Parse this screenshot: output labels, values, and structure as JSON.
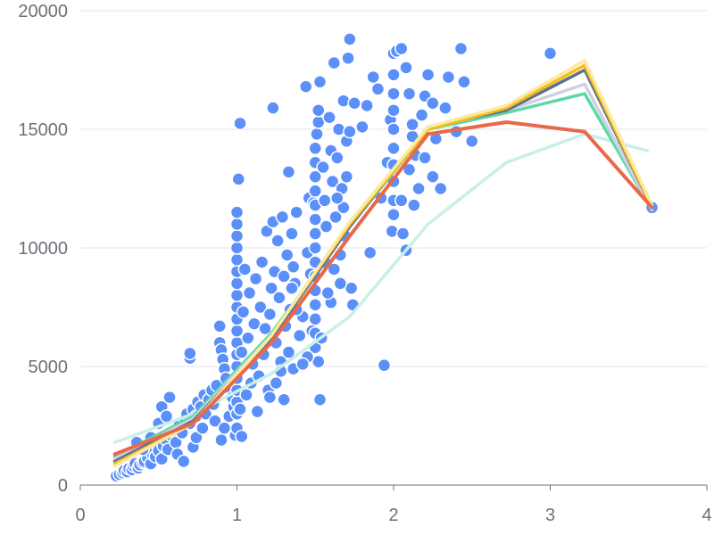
{
  "chart_data": {
    "type": "scatter",
    "title": "",
    "xlabel": "",
    "ylabel": "",
    "xlim": [
      0,
      4
    ],
    "ylim": [
      0,
      20000
    ],
    "x_ticks": [
      0,
      1,
      2,
      3,
      4
    ],
    "y_ticks": [
      0,
      5000,
      10000,
      15000,
      20000
    ],
    "x_tick_labels": [
      "0",
      "1",
      "2",
      "3",
      "4"
    ],
    "y_tick_labels": [
      "0",
      "5000",
      "10000",
      "15000",
      "20000"
    ],
    "grid": "horizontal",
    "legend": "none",
    "colors": {
      "points": "#5b8ff9",
      "point_stroke": "#ffffff",
      "grid": "#e0e6f1",
      "axis": "#6e7079",
      "lines": [
        "#c8f0e6",
        "#5ad8a6",
        "#d3cfe3",
        "#5d7092",
        "#f6bd16",
        "#fce9a4",
        "#e8684a"
      ]
    },
    "scatter_series": [
      {
        "points": [
          [
            0.23,
            380
          ],
          [
            0.25,
            450
          ],
          [
            0.27,
            520
          ],
          [
            0.28,
            610
          ],
          [
            0.3,
            560
          ],
          [
            0.31,
            700
          ],
          [
            0.33,
            650
          ],
          [
            0.34,
            800
          ],
          [
            0.35,
            900
          ],
          [
            0.37,
            720
          ],
          [
            0.38,
            850
          ],
          [
            0.4,
            950
          ],
          [
            0.41,
            1000
          ],
          [
            0.43,
            1150
          ],
          [
            0.45,
            900
          ],
          [
            0.46,
            1300
          ],
          [
            0.48,
            1200
          ],
          [
            0.5,
            1450
          ],
          [
            0.52,
            1100
          ],
          [
            0.53,
            1650
          ],
          [
            0.55,
            1900
          ],
          [
            0.56,
            1500
          ],
          [
            0.58,
            2100
          ],
          [
            0.6,
            2300
          ],
          [
            0.61,
            1800
          ],
          [
            0.63,
            2500
          ],
          [
            0.65,
            2200
          ],
          [
            0.67,
            2800
          ],
          [
            0.68,
            3000
          ],
          [
            0.7,
            2600
          ],
          [
            0.72,
            3200
          ],
          [
            0.74,
            2900
          ],
          [
            0.75,
            3500
          ],
          [
            0.77,
            3300
          ],
          [
            0.79,
            3800
          ],
          [
            0.8,
            3000
          ],
          [
            0.82,
            3600
          ],
          [
            0.84,
            4000
          ],
          [
            0.85,
            3400
          ],
          [
            0.87,
            4200
          ],
          [
            0.36,
            1800
          ],
          [
            0.4,
            1500
          ],
          [
            0.45,
            2000
          ],
          [
            0.5,
            2600
          ],
          [
            0.52,
            3300
          ],
          [
            0.55,
            2900
          ],
          [
            0.57,
            3700
          ],
          [
            0.62,
            1300
          ],
          [
            0.66,
            1000
          ],
          [
            0.7,
            5350
          ],
          [
            0.7,
            5550
          ],
          [
            0.72,
            1600
          ],
          [
            0.74,
            2000
          ],
          [
            0.78,
            2400
          ],
          [
            0.86,
            2700
          ],
          [
            0.9,
            1900
          ],
          [
            0.92,
            2400
          ],
          [
            0.95,
            2900
          ],
          [
            0.98,
            3300
          ],
          [
            0.89,
            6700
          ],
          [
            0.89,
            6000
          ],
          [
            0.9,
            5700
          ],
          [
            0.91,
            5300
          ],
          [
            0.92,
            4900
          ],
          [
            0.93,
            4500
          ],
          [
            0.95,
            4100
          ],
          [
            0.97,
            3700
          ],
          [
            0.99,
            2100
          ],
          [
            1.0,
            2400
          ],
          [
            1.0,
            3000
          ],
          [
            1.0,
            3500
          ],
          [
            1.0,
            4000
          ],
          [
            1.0,
            4500
          ],
          [
            1.0,
            5000
          ],
          [
            1.0,
            5500
          ],
          [
            1.0,
            6000
          ],
          [
            1.0,
            6500
          ],
          [
            1.0,
            7000
          ],
          [
            1.0,
            7500
          ],
          [
            1.0,
            8000
          ],
          [
            1.0,
            8500
          ],
          [
            1.0,
            9000
          ],
          [
            1.0,
            9500
          ],
          [
            1.0,
            10000
          ],
          [
            1.0,
            10500
          ],
          [
            1.0,
            11000
          ],
          [
            1.0,
            11500
          ],
          [
            1.01,
            12900
          ],
          [
            1.02,
            15250
          ],
          [
            1.03,
            2050
          ],
          [
            1.02,
            3200
          ],
          [
            1.03,
            5600
          ],
          [
            1.04,
            7300
          ],
          [
            1.05,
            9100
          ],
          [
            1.06,
            3800
          ],
          [
            1.07,
            6200
          ],
          [
            1.08,
            8100
          ],
          [
            1.09,
            4300
          ],
          [
            1.1,
            5100
          ],
          [
            1.11,
            6800
          ],
          [
            1.12,
            8700
          ],
          [
            1.13,
            3100
          ],
          [
            1.14,
            4600
          ],
          [
            1.15,
            7500
          ],
          [
            1.16,
            9400
          ],
          [
            1.17,
            5500
          ],
          [
            1.18,
            6600
          ],
          [
            1.19,
            10700
          ],
          [
            1.2,
            4000
          ],
          [
            1.21,
            7200
          ],
          [
            1.22,
            8300
          ],
          [
            1.23,
            11100
          ],
          [
            1.24,
            9000
          ],
          [
            1.25,
            6000
          ],
          [
            1.26,
            10300
          ],
          [
            1.27,
            7900
          ],
          [
            1.28,
            5200
          ],
          [
            1.29,
            11300
          ],
          [
            1.3,
            8800
          ],
          [
            1.31,
            6700
          ],
          [
            1.32,
            9700
          ],
          [
            1.33,
            13200
          ],
          [
            1.34,
            7400
          ],
          [
            1.35,
            10600
          ],
          [
            1.36,
            9200
          ],
          [
            1.37,
            8500
          ],
          [
            1.38,
            11500
          ],
          [
            1.23,
            15900
          ],
          [
            1.21,
            3700
          ],
          [
            1.25,
            4300
          ],
          [
            1.28,
            4800
          ],
          [
            1.3,
            3600
          ],
          [
            1.33,
            5600
          ],
          [
            1.36,
            4900
          ],
          [
            1.4,
            6300
          ],
          [
            1.42,
            7100
          ],
          [
            1.44,
            16800
          ],
          [
            1.45,
            9800
          ],
          [
            1.46,
            12100
          ],
          [
            1.47,
            8900
          ],
          [
            1.48,
            6500
          ],
          [
            1.49,
            11900
          ],
          [
            1.5,
            5800
          ],
          [
            1.5,
            6400
          ],
          [
            1.5,
            7000
          ],
          [
            1.5,
            7600
          ],
          [
            1.5,
            8200
          ],
          [
            1.5,
            8800
          ],
          [
            1.5,
            9400
          ],
          [
            1.5,
            10000
          ],
          [
            1.5,
            10600
          ],
          [
            1.5,
            11200
          ],
          [
            1.5,
            11800
          ],
          [
            1.5,
            12400
          ],
          [
            1.5,
            13000
          ],
          [
            1.5,
            13600
          ],
          [
            1.5,
            14200
          ],
          [
            1.51,
            14800
          ],
          [
            1.52,
            15300
          ],
          [
            1.52,
            15800
          ],
          [
            1.53,
            3600
          ],
          [
            1.52,
            5200
          ],
          [
            1.53,
            17000
          ],
          [
            1.55,
            13400
          ],
          [
            1.56,
            12000
          ],
          [
            1.57,
            10900
          ],
          [
            1.58,
            9300
          ],
          [
            1.59,
            15500
          ],
          [
            1.6,
            14100
          ],
          [
            1.61,
            12800
          ],
          [
            1.62,
            17800
          ],
          [
            1.63,
            11300
          ],
          [
            1.64,
            13800
          ],
          [
            1.65,
            15000
          ],
          [
            1.66,
            9700
          ],
          [
            1.67,
            12500
          ],
          [
            1.68,
            16200
          ],
          [
            1.69,
            10500
          ],
          [
            1.7,
            14500
          ],
          [
            1.71,
            18000
          ],
          [
            1.72,
            18800
          ],
          [
            1.73,
            8300
          ],
          [
            1.74,
            7600
          ],
          [
            1.68,
            11700
          ],
          [
            1.7,
            13000
          ],
          [
            1.72,
            14900
          ],
          [
            1.75,
            16100
          ],
          [
            1.6,
            7700
          ],
          [
            1.62,
            9100
          ],
          [
            1.66,
            8500
          ],
          [
            1.54,
            6200
          ],
          [
            1.58,
            8100
          ],
          [
            1.64,
            12100
          ],
          [
            1.45,
            5400
          ],
          [
            1.42,
            5100
          ],
          [
            1.38,
            7400
          ],
          [
            1.35,
            8300
          ],
          [
            1.8,
            15100
          ],
          [
            1.83,
            16000
          ],
          [
            1.85,
            9800
          ],
          [
            1.87,
            17200
          ],
          [
            1.9,
            16700
          ],
          [
            1.92,
            12100
          ],
          [
            1.94,
            5050
          ],
          [
            1.96,
            13600
          ],
          [
            1.98,
            15400
          ],
          [
            1.99,
            10700
          ],
          [
            2.0,
            11400
          ],
          [
            2.0,
            12000
          ],
          [
            2.0,
            12800
          ],
          [
            2.0,
            13500
          ],
          [
            2.0,
            14200
          ],
          [
            2.0,
            15000
          ],
          [
            2.0,
            15800
          ],
          [
            2.0,
            16500
          ],
          [
            2.0,
            17300
          ],
          [
            2.0,
            18200
          ],
          [
            2.02,
            18300
          ],
          [
            2.05,
            18400
          ],
          [
            2.08,
            17600
          ],
          [
            2.1,
            16500
          ],
          [
            2.12,
            14700
          ],
          [
            2.14,
            13900
          ],
          [
            2.16,
            12500
          ],
          [
            2.18,
            15600
          ],
          [
            2.2,
            16400
          ],
          [
            2.22,
            17300
          ],
          [
            2.25,
            13000
          ],
          [
            2.27,
            14600
          ],
          [
            2.3,
            12500
          ],
          [
            2.33,
            15900
          ],
          [
            2.35,
            17200
          ],
          [
            2.4,
            14900
          ],
          [
            2.43,
            18400
          ],
          [
            2.45,
            17000
          ],
          [
            2.05,
            12000
          ],
          [
            2.1,
            13300
          ],
          [
            2.13,
            11800
          ],
          [
            2.06,
            10600
          ],
          [
            2.08,
            9900
          ],
          [
            2.12,
            15200
          ],
          [
            2.2,
            13800
          ],
          [
            2.25,
            16100
          ],
          [
            2.5,
            14500
          ],
          [
            3.0,
            18200
          ],
          [
            3.65,
            11700
          ]
        ]
      }
    ],
    "series": [
      {
        "x": [
          0.22,
          0.72,
          1.22,
          1.72,
          2.22,
          2.72,
          3.22,
          3.62
        ],
        "values": [
          1800,
          3000,
          4700,
          7100,
          11000,
          13600,
          14800,
          14100
        ]
      },
      {
        "x": [
          0.22,
          0.72,
          1.22,
          1.72,
          2.22,
          2.72,
          3.22,
          3.65
        ],
        "values": [
          1200,
          2900,
          6400,
          10900,
          15000,
          15700,
          16500,
          11600
        ]
      },
      {
        "x": [
          0.22,
          0.72,
          1.22,
          1.72,
          2.22,
          2.72,
          3.22,
          3.65
        ],
        "values": [
          1100,
          2800,
          6300,
          10900,
          15100,
          15800,
          16900,
          11600
        ]
      },
      {
        "x": [
          0.22,
          0.72,
          1.22,
          1.72,
          2.22,
          2.72,
          3.22,
          3.65
        ],
        "values": [
          1000,
          2700,
          6200,
          10900,
          15100,
          15800,
          17500,
          11700
        ]
      },
      {
        "x": [
          0.22,
          0.72,
          1.22,
          1.72,
          2.22,
          2.72,
          3.22,
          3.65
        ],
        "values": [
          900,
          2600,
          6300,
          11000,
          15000,
          15900,
          17700,
          11700
        ]
      },
      {
        "x": [
          0.22,
          0.72,
          1.22,
          1.72,
          2.22,
          2.72,
          3.22,
          3.65
        ],
        "values": [
          800,
          2600,
          6300,
          11100,
          15100,
          16000,
          17900,
          11800
        ]
      },
      {
        "x": [
          0.22,
          0.72,
          1.22,
          1.72,
          2.22,
          2.72,
          3.22,
          3.65
        ],
        "values": [
          1300,
          2600,
          6000,
          10500,
          14800,
          15300,
          14900,
          11700
        ]
      }
    ]
  }
}
